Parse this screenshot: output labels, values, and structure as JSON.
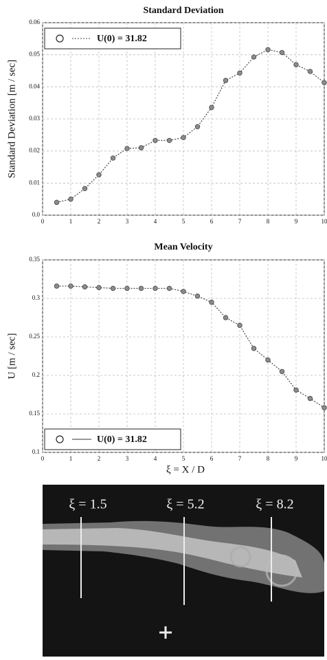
{
  "chart_data": [
    {
      "type": "line",
      "title": "Standard Deviation",
      "ylabel": "Standard Deviation [m / sec]",
      "x": [
        0.5,
        1,
        1.5,
        2,
        2.5,
        3,
        3.5,
        4,
        4.5,
        5,
        5.5,
        6,
        6.5,
        7,
        7.5,
        8,
        8.5,
        9,
        9.5,
        10
      ],
      "series": [
        {
          "name": "U(0) = 31.82",
          "color": "#444444",
          "values": [
            0.004,
            0.005,
            0.0083,
            0.0126,
            0.0178,
            0.0208,
            0.021,
            0.0233,
            0.0233,
            0.0242,
            0.0276,
            0.0336,
            0.042,
            0.0443,
            0.0493,
            0.0516,
            0.0507,
            0.0469,
            0.0448,
            0.0413
          ]
        }
      ],
      "xlim": [
        0,
        10
      ],
      "xticks": [
        0,
        1,
        2,
        3,
        4,
        5,
        6,
        7,
        8,
        9,
        10
      ],
      "ylim": [
        0,
        0.06
      ],
      "yticks": [
        {
          "value": 0,
          "label": "0.0"
        },
        0.01,
        0.02,
        0.03,
        0.04,
        0.05,
        0.06
      ],
      "grid": true,
      "legend": "upper left"
    },
    {
      "type": "line",
      "title": "Mean Velocity",
      "ylabel": "U [m / sec]",
      "xlabel": "ξ = X / D",
      "x": [
        0.5,
        1,
        1.5,
        2,
        2.5,
        3,
        3.5,
        4,
        4.5,
        5,
        5.5,
        6,
        6.5,
        7,
        7.5,
        8,
        8.5,
        9,
        9.5,
        10
      ],
      "series": [
        {
          "name": "U(0) = 31.82",
          "color": "#444444",
          "values": [
            0.316,
            0.316,
            0.315,
            0.314,
            0.313,
            0.313,
            0.313,
            0.313,
            0.313,
            0.309,
            0.303,
            0.295,
            0.275,
            0.265,
            0.235,
            0.22,
            0.205,
            0.181,
            0.17,
            0.158
          ]
        }
      ],
      "xlim": [
        0,
        10
      ],
      "xticks": [
        0,
        1,
        2,
        3,
        4,
        5,
        6,
        7,
        8,
        9,
        10
      ],
      "ylim": [
        0.1,
        0.35
      ],
      "yticks": [
        0.1,
        0.15,
        0.2,
        0.25,
        0.3,
        0.35
      ],
      "grid": true,
      "legend": "lower left"
    }
  ],
  "photo": {
    "labels": [
      "ξ = 1.5",
      "ξ = 5.2",
      "ξ = 8.2"
    ]
  }
}
